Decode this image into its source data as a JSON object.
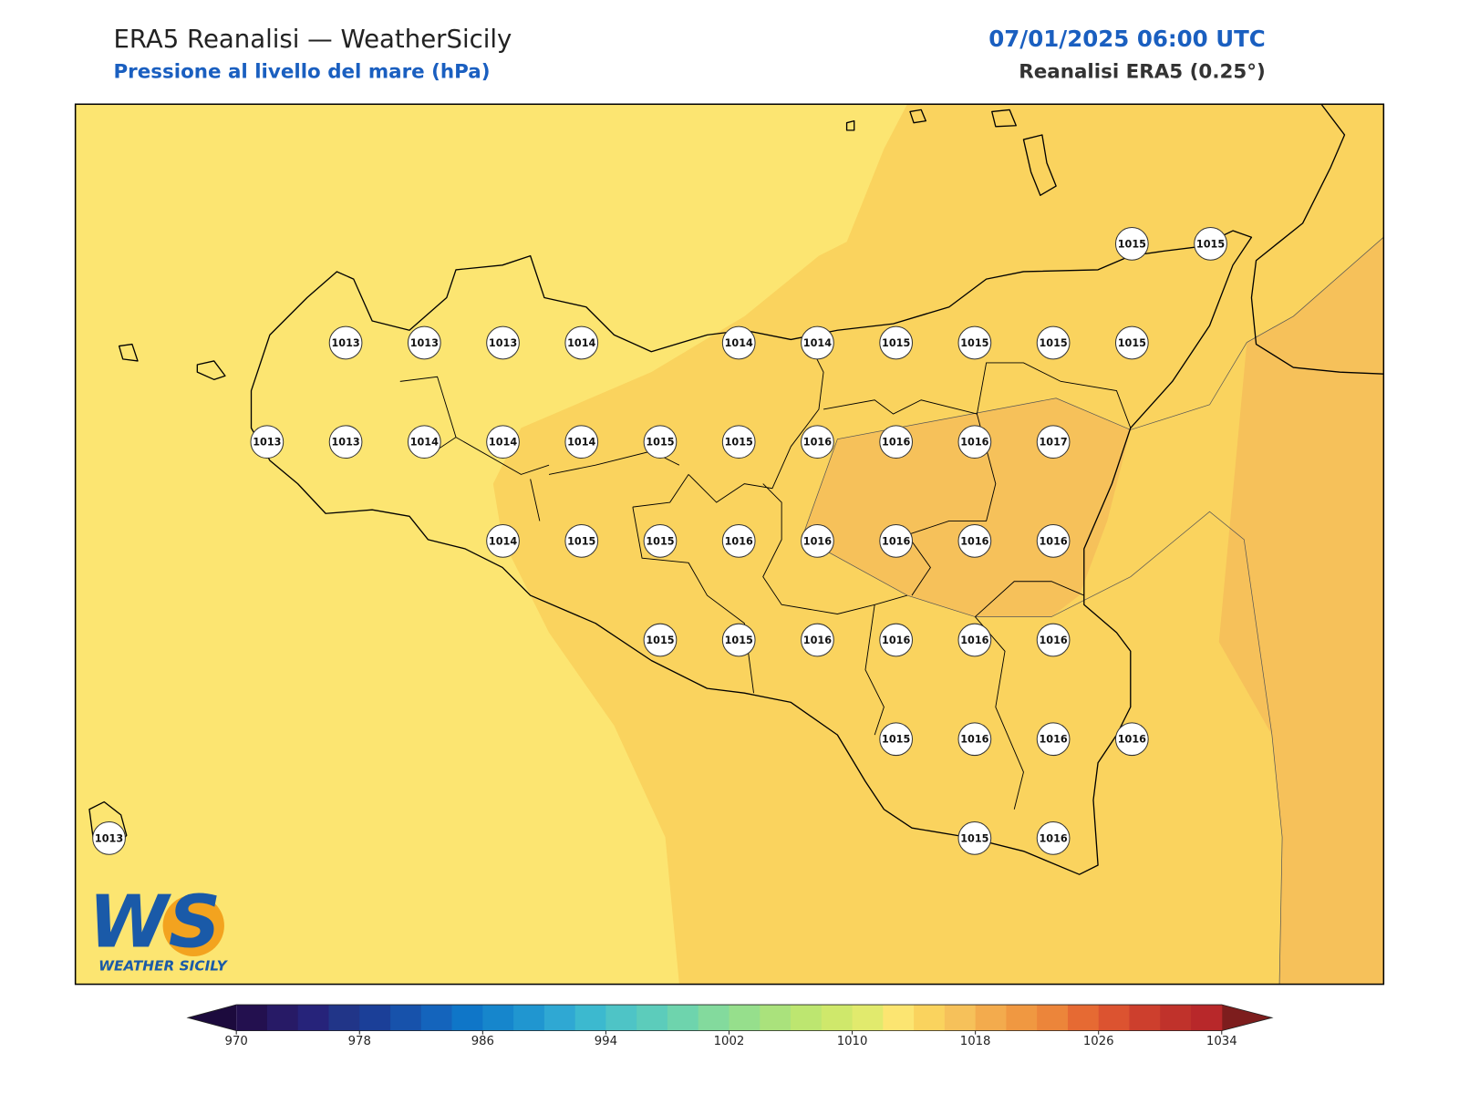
{
  "header": {
    "title": "ERA5 Reanalisi — WeatherSicily",
    "subtitle": "Pressione al livello del mare (hPa)",
    "date": "07/01/2025 06:00 UTC",
    "source": "Reanalisi ERA5 (0.25°)"
  },
  "stations": [
    1015,
    1015,
    1013,
    1013,
    1013,
    1014,
    1014,
    1014,
    1015,
    1015,
    1015,
    1015,
    1013,
    1013,
    1014,
    1014,
    1014,
    1015,
    1015,
    1016,
    1016,
    1016,
    1017,
    1014,
    1015,
    1015,
    1016,
    1016,
    1016,
    1016,
    1016,
    1015,
    1015,
    1016,
    1016,
    1016,
    1016,
    1015,
    1016,
    1016,
    1016,
    1015,
    1016,
    1013
  ],
  "colorbar": {
    "lim": [
      970,
      1034
    ],
    "ticks": [
      970,
      978,
      986,
      994,
      1002,
      1010,
      1018,
      1026,
      1034
    ],
    "colors": [
      "#23104f",
      "#271a66",
      "#26237a",
      "#213588",
      "#1b3f98",
      "#1752ab",
      "#1464bc",
      "#0f76c8",
      "#1686cc",
      "#2096d0",
      "#2fa8d3",
      "#3cb9cf",
      "#4ec4c6",
      "#5cccbb",
      "#6ed4ad",
      "#83da9d",
      "#96df8c",
      "#aae27c",
      "#bde670",
      "#cfe86b",
      "#e1ea6d",
      "#fce571",
      "#fad35e",
      "#f6c15a",
      "#f3ab4d",
      "#f09841",
      "#ec853a",
      "#e66a33",
      "#dc5330",
      "#cd3f2d",
      "#c0322b",
      "#b8282a"
    ],
    "under_color": "#1c0a3d",
    "over_color": "#7d1d1d"
  },
  "logo": {
    "mark": "WS",
    "text": "WEATHER SICILY"
  }
}
